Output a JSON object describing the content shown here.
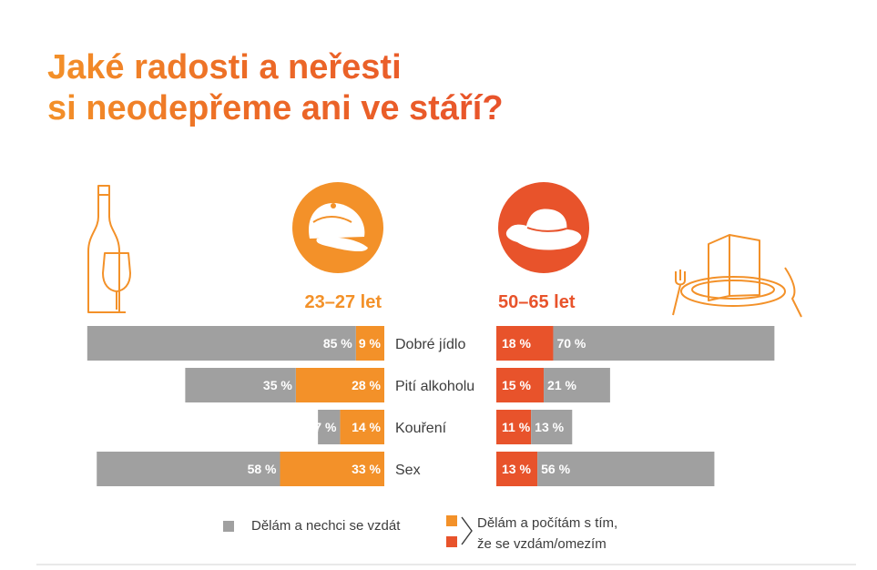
{
  "title": {
    "line1": "Jaké radosti a neřesti",
    "line2": "si neodepřeme ani ve stáří?"
  },
  "colors": {
    "grey": "#a0a0a0",
    "orange": "#f39129",
    "red": "#e8532b",
    "icon_outline": "#f39129",
    "label_text": "#3c3c3c"
  },
  "icons": [
    "wine-bottle-glass-icon",
    "cap-icon",
    "hat-icon",
    "plate-menu-cutlery-icon"
  ],
  "chart_data": {
    "type": "bar",
    "orientation": "horizontal-diverging",
    "categories": [
      "Dobré jídlo",
      "Pití alkoholu",
      "Kouření",
      "Sex"
    ],
    "groups": [
      {
        "name": "23–27 let",
        "series": [
          {
            "name": "Dělám a nechci se vzdát",
            "values": [
              85,
              35,
              7,
              58
            ],
            "labels": [
              "85 %",
              "35 %",
              "7 %",
              "58 %"
            ]
          },
          {
            "name": "Dělám a počítám s tím, že se vzdám/omezím",
            "values": [
              9,
              28,
              14,
              33
            ],
            "labels": [
              "9 %",
              "28 %",
              "14 %",
              "33 %"
            ]
          }
        ]
      },
      {
        "name": "50–65 let",
        "series": [
          {
            "name": "Dělám a počítám s tím, že se vzdám/omezím",
            "values": [
              18,
              15,
              11,
              13
            ],
            "labels": [
              "18 %",
              "15 %",
              "11 %",
              "13 %"
            ]
          },
          {
            "name": "Dělám a nechci se vzdát",
            "values": [
              70,
              21,
              13,
              56
            ],
            "labels": [
              "70 %",
              "21 %",
              "13 %",
              "56 %"
            ]
          }
        ]
      }
    ],
    "legend": {
      "grey": "Dělám a nechci se vzdát",
      "orange_red_line1": "Dělám a počítám s tím,",
      "orange_red_line2": "že se vzdám/omezím"
    }
  }
}
